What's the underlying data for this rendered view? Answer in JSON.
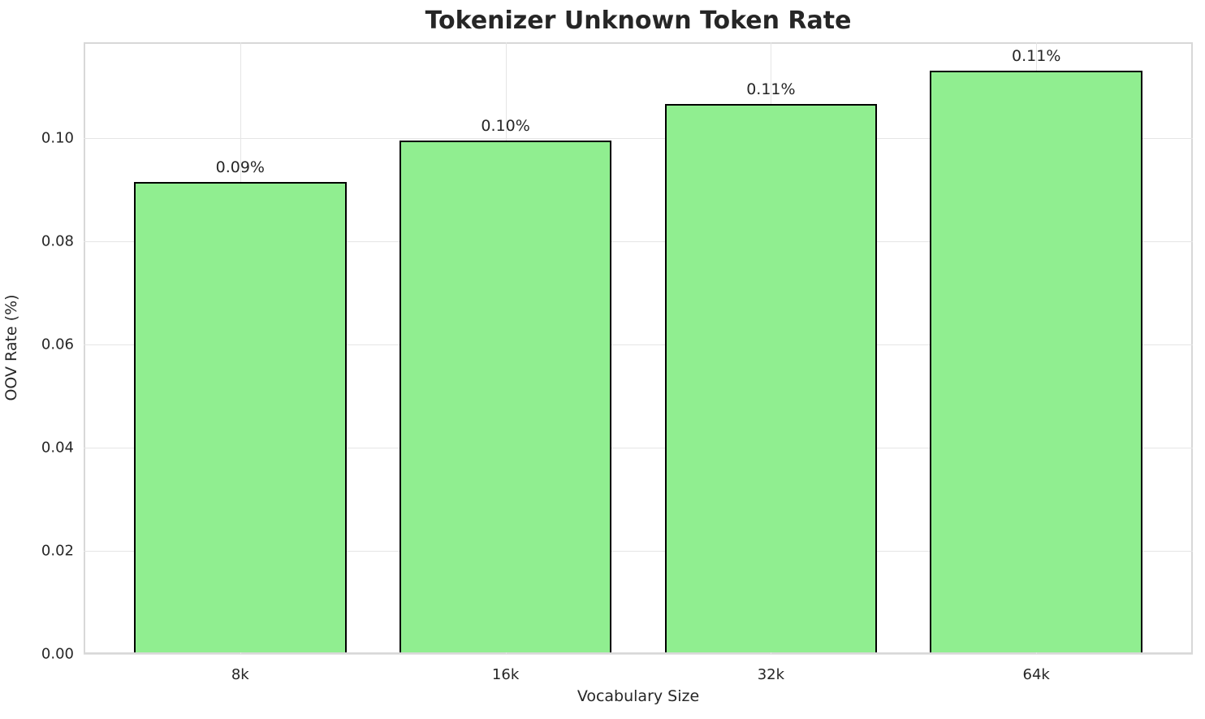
{
  "title": "Tokenizer Unknown Token Rate",
  "chart_data": {
    "type": "bar",
    "title": "Tokenizer Unknown Token Rate",
    "xlabel": "Vocabulary Size",
    "ylabel": "OOV Rate (%)",
    "categories": [
      "8k",
      "16k",
      "32k",
      "64k"
    ],
    "values": [
      0.0915,
      0.0995,
      0.1065,
      0.113
    ],
    "bar_labels": [
      "0.09%",
      "0.10%",
      "0.11%",
      "0.11%"
    ],
    "ylim": [
      0,
      0.1185
    ],
    "yticks": [
      0.0,
      0.02,
      0.04,
      0.06,
      0.08,
      0.1
    ],
    "ytick_labels": [
      "0.00",
      "0.02",
      "0.04",
      "0.06",
      "0.08",
      "0.10"
    ],
    "grid": true,
    "legend": "none",
    "colors": {
      "bar_fill": "#90EE90",
      "bar_edge": "#000000",
      "grid": "#e5e5e5",
      "spine": "#d8d8d8",
      "text": "#262626",
      "background": "#ffffff"
    }
  }
}
